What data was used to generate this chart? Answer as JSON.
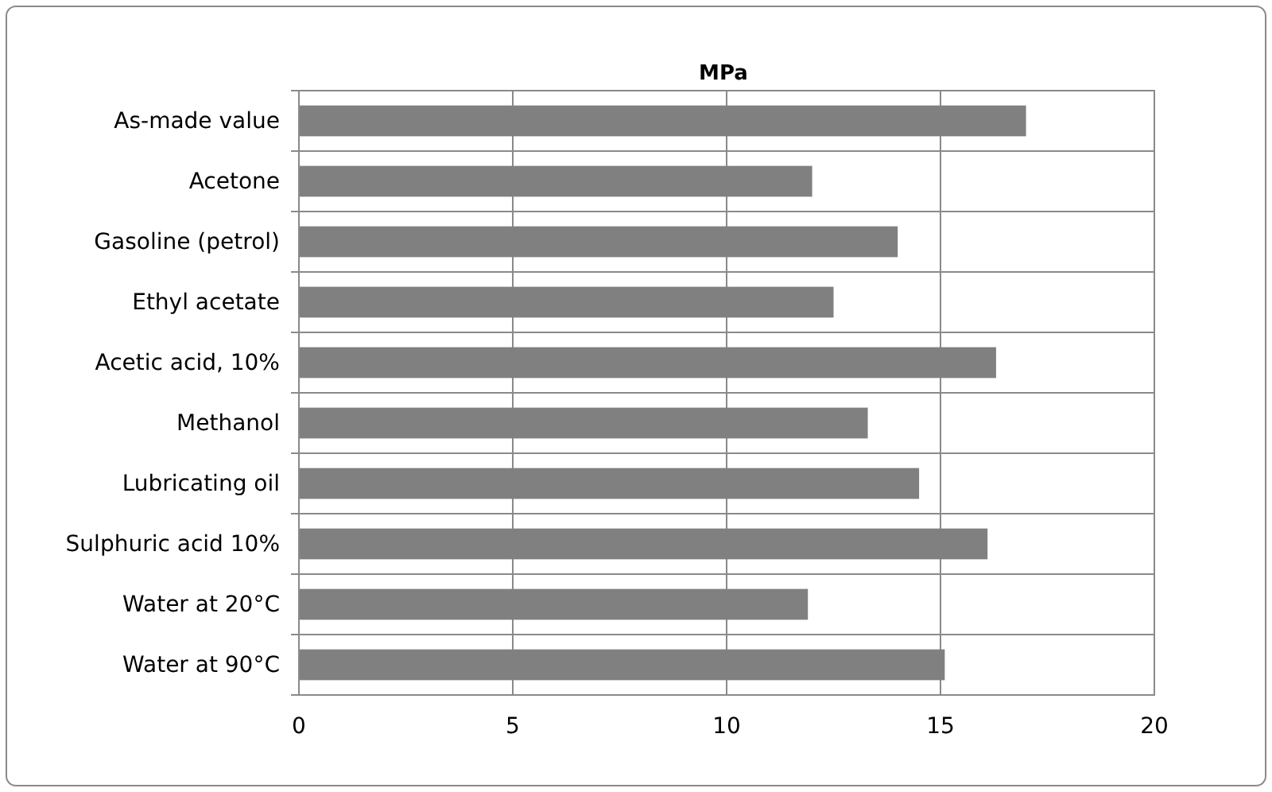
{
  "chart_data": {
    "type": "bar",
    "orientation": "horizontal",
    "title": "MPa",
    "categories": [
      "As-made value",
      "Acetone",
      "Gasoline (petrol)",
      "Ethyl acetate",
      "Acetic acid, 10%",
      "Methanol",
      "Lubricating oil",
      "Sulphuric acid 10%",
      "Water at 20°C",
      "Water at 90°C"
    ],
    "values": [
      17.0,
      12.0,
      14.0,
      12.5,
      16.3,
      13.3,
      14.5,
      16.1,
      11.9,
      15.1
    ],
    "color": "#808080",
    "xlim": [
      0,
      20
    ],
    "xticks": [
      0,
      5,
      10,
      15,
      20
    ],
    "grid": true
  }
}
